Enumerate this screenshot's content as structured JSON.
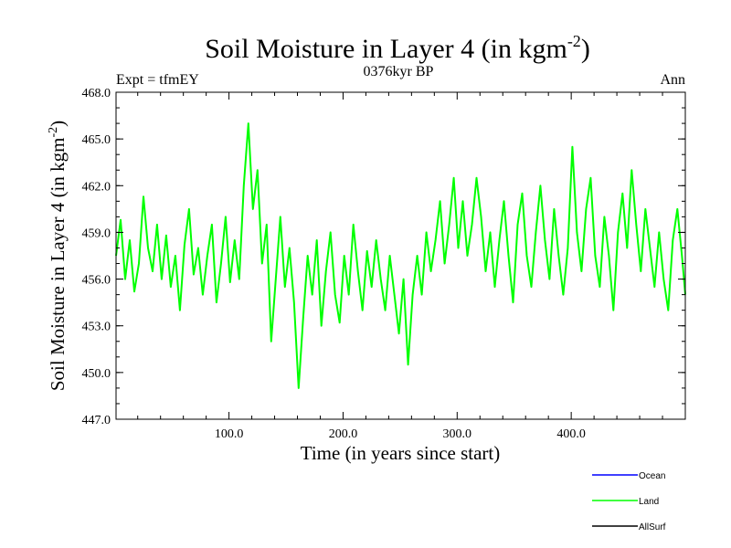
{
  "chart_data": {
    "type": "line",
    "title_text": "Soil Moisture in Layer 4 (in kgm",
    "title_sup": "-2",
    "title_close": ")",
    "subtitle_left": "Expt = tfmEY",
    "subtitle_center": "0376kyr BP",
    "subtitle_right": "Ann",
    "xlabel": "Time (in years since start)",
    "ylabel_text": "Soil Moisture in Layer 4 (in kgm",
    "ylabel_sup": "-2",
    "ylabel_close": ")",
    "xlim": [
      1,
      500
    ],
    "ylim": [
      447.0,
      468.0
    ],
    "x_ticks": [
      100,
      200,
      300,
      400
    ],
    "x_tick_labels": [
      "100.0",
      "200.0",
      "300.0",
      "400.0"
    ],
    "y_ticks": [
      447,
      450,
      453,
      456,
      459,
      462,
      465,
      468
    ],
    "y_tick_labels": [
      "447.0",
      "450.0",
      "453.0",
      "456.0",
      "459.0",
      "462.0",
      "465.0",
      "468.0"
    ],
    "legend": [
      {
        "name": "Ocean",
        "color": "#0000ff"
      },
      {
        "name": "Land",
        "color": "#00ff00"
      },
      {
        "name": "AllSurf",
        "color": "#000000"
      }
    ],
    "series": [
      {
        "name": "Land",
        "color": "#00ff00",
        "x": [
          1,
          5,
          9,
          13,
          17,
          21,
          25,
          29,
          33,
          37,
          41,
          45,
          49,
          53,
          57,
          61,
          65,
          69,
          73,
          77,
          81,
          85,
          89,
          93,
          97,
          101,
          105,
          109,
          113,
          117,
          121,
          125,
          129,
          133,
          137,
          141,
          145,
          149,
          153,
          157,
          161,
          165,
          169,
          173,
          177,
          181,
          185,
          189,
          193,
          197,
          201,
          205,
          209,
          213,
          217,
          221,
          225,
          229,
          233,
          237,
          241,
          245,
          249,
          253,
          257,
          261,
          265,
          269,
          273,
          277,
          281,
          285,
          289,
          293,
          297,
          301,
          305,
          309,
          313,
          317,
          321,
          325,
          329,
          333,
          337,
          341,
          345,
          349,
          353,
          357,
          361,
          365,
          369,
          373,
          377,
          381,
          385,
          389,
          393,
          397,
          401,
          405,
          409,
          413,
          417,
          421,
          425,
          429,
          433,
          437,
          441,
          445,
          449,
          453,
          457,
          461,
          465,
          469,
          473,
          477,
          481,
          485,
          489,
          493,
          497,
          500
        ],
        "values": [
          457.5,
          459.8,
          456.0,
          458.5,
          455.2,
          457.0,
          461.3,
          458.0,
          456.5,
          459.5,
          456.0,
          458.8,
          455.5,
          457.5,
          454.0,
          458.2,
          460.5,
          456.3,
          458.0,
          455.0,
          457.5,
          459.5,
          454.5,
          457.0,
          460.0,
          455.8,
          458.5,
          456.0,
          462.0,
          466.0,
          460.5,
          463.0,
          457.0,
          459.5,
          452.0,
          456.0,
          460.0,
          455.5,
          458.0,
          454.5,
          449.0,
          453.5,
          457.5,
          455.0,
          458.5,
          453.0,
          456.5,
          459.0,
          455.0,
          453.2,
          457.5,
          455.0,
          459.5,
          456.5,
          454.0,
          457.8,
          455.5,
          458.5,
          456.0,
          454.0,
          457.5,
          455.0,
          452.5,
          456.0,
          450.5,
          455.0,
          457.5,
          455.0,
          459.0,
          456.5,
          458.5,
          461.0,
          457.0,
          459.5,
          462.5,
          458.0,
          461.0,
          457.5,
          459.5,
          462.5,
          460.0,
          456.5,
          459.0,
          455.5,
          458.5,
          461.0,
          457.5,
          454.5,
          459.5,
          461.5,
          457.5,
          455.5,
          459.0,
          462.0,
          458.5,
          456.0,
          460.5,
          457.5,
          455.0,
          458.0,
          464.5,
          459.0,
          456.5,
          460.5,
          462.5,
          457.5,
          455.5,
          460.0,
          457.5,
          454.0,
          459.0,
          461.5,
          458.0,
          463.0,
          459.5,
          456.5,
          460.5,
          458.0,
          455.5,
          459.0,
          456.0,
          454.0,
          458.5,
          460.5,
          457.5,
          455.0
        ]
      }
    ]
  }
}
